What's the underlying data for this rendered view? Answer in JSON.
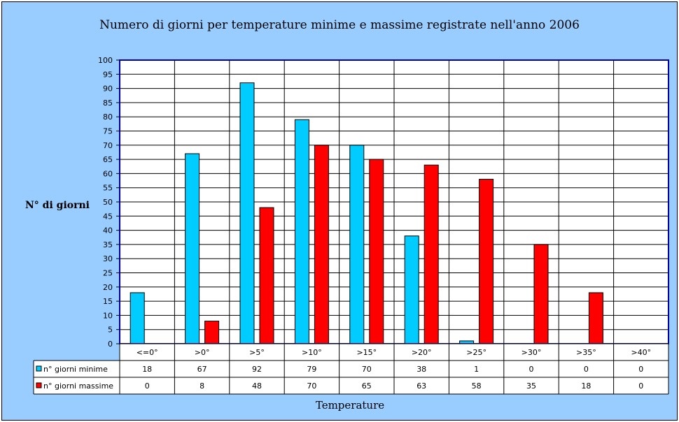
{
  "chart_data": {
    "type": "bar",
    "title": "Numero di giorni per temperature minime e massime registrate nell'anno 2006",
    "ylabel": "N° di giorni",
    "xlabel": "Temperature",
    "categories": [
      "<=0°",
      ">0°",
      ">5°",
      ">10°",
      ">15°",
      ">20°",
      ">25°",
      ">30°",
      ">35°",
      ">40°"
    ],
    "series": [
      {
        "name": "n° giorni minime",
        "color": "#00ccff",
        "values": [
          18,
          67,
          92,
          79,
          70,
          38,
          1,
          0,
          0,
          0
        ]
      },
      {
        "name": "n° giorni massime",
        "color": "#ff0000",
        "values": [
          0,
          8,
          48,
          70,
          65,
          63,
          58,
          35,
          18,
          0
        ]
      }
    ],
    "ylim": [
      0,
      100
    ],
    "ytick_step": 5,
    "grid": true,
    "legend": "data-table"
  }
}
